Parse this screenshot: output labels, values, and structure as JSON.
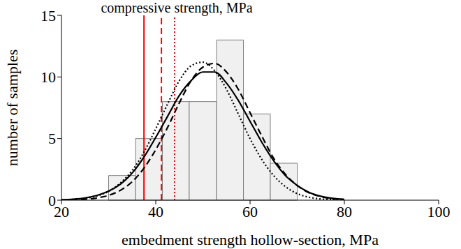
{
  "chart_data": {
    "type": "histogram",
    "title": "compressive strength, MPa",
    "x_label": "embedment strength hollow-section, MPa",
    "y_label": "number of samples",
    "bins": [
      30,
      35.7,
      41.4,
      47.1,
      52.9,
      58.6,
      64.3,
      70
    ],
    "counts": [
      2,
      5,
      8,
      8,
      13,
      7,
      3
    ],
    "color": "#f0f0f0",
    "xlim": [
      20,
      100
    ],
    "xticks": [
      20,
      40,
      60,
      80,
      100
    ],
    "ylim": [
      0,
      15
    ],
    "yticks": [
      0,
      5,
      10,
      15
    ],
    "grid": false,
    "series": [
      {
        "type": "line",
        "color": "#000000",
        "line_style": "solid",
        "x": [
          20,
          22.5,
          25,
          27.5,
          30,
          32.5,
          35,
          37.5,
          40,
          42.5,
          45,
          47.5,
          50,
          52.5,
          55,
          57.5,
          60,
          62.5,
          65,
          67.5,
          70,
          72.5,
          75,
          77.5,
          80
        ],
        "values": [
          0.03,
          0.08,
          0.18,
          0.38,
          0.73,
          1.3,
          2.2,
          3.5,
          5.1,
          6.8,
          8.5,
          9.7,
          10.4,
          10.4,
          9.5,
          8.1,
          6.4,
          4.7,
          3.2,
          2.0,
          1.2,
          0.64,
          0.32,
          0.15,
          0.07
        ]
      },
      {
        "type": "line",
        "color": "#000000",
        "line_style": "dashed",
        "x": [
          20,
          22.5,
          25,
          27.5,
          30,
          32.5,
          35,
          37.5,
          40,
          42.5,
          45,
          47.5,
          50,
          52.5,
          55,
          57.5,
          60,
          62.5,
          65,
          67.5,
          70,
          72.5,
          75,
          77.5,
          80
        ],
        "values": [
          0.01,
          0.03,
          0.07,
          0.18,
          0.39,
          0.8,
          1.5,
          2.6,
          4.1,
          5.9,
          7.9,
          9.7,
          10.8,
          11.1,
          10.4,
          9.0,
          7.1,
          5.2,
          3.4,
          2.1,
          1.2,
          0.6,
          0.29,
          0.12,
          0.05
        ]
      },
      {
        "type": "line",
        "color": "#000000",
        "line_style": "dotted",
        "x": [
          20,
          22.5,
          25,
          27.5,
          30,
          32.5,
          35,
          37.5,
          40,
          42.5,
          45,
          47.5,
          50,
          52.5,
          55,
          57.5,
          60,
          62.5,
          65,
          67.5,
          70,
          72.5,
          75,
          77.5,
          80
        ],
        "values": [
          0.02,
          0.06,
          0.14,
          0.34,
          0.71,
          1.4,
          2.4,
          3.9,
          5.8,
          7.8,
          9.7,
          10.9,
          11.2,
          10.5,
          9.0,
          7.0,
          5.0,
          3.3,
          2.0,
          1.1,
          0.53,
          0.24,
          0.1,
          0.04,
          0.01
        ]
      }
    ],
    "vlines": [
      {
        "value": 37.5,
        "color": "#ff0000",
        "line_style": "solid"
      },
      {
        "value": 41.2,
        "color": "#ff0000",
        "line_style": "dashed"
      },
      {
        "value": 44,
        "color": "#ff0000",
        "line_style": "dotted"
      }
    ]
  }
}
